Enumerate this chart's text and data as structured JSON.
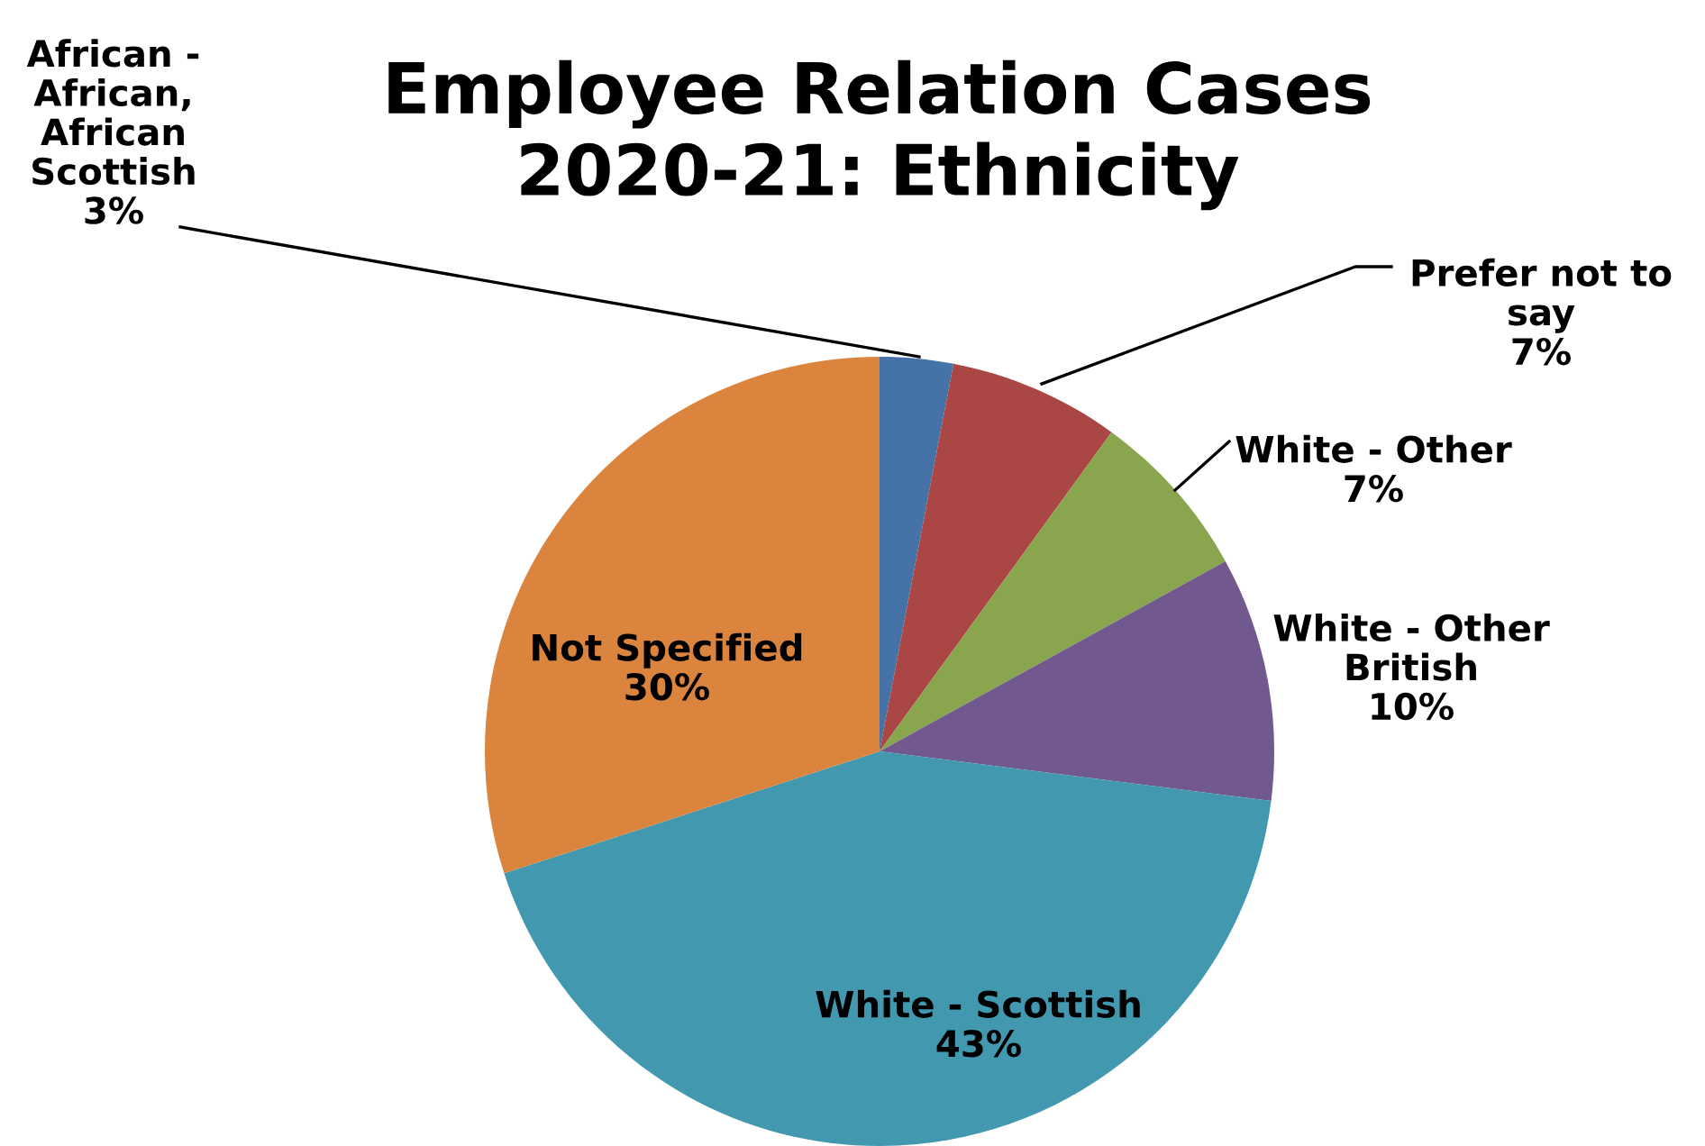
{
  "chart_data": {
    "type": "pie",
    "title": "Employee Relation Cases\n2020-21: Ethnicity",
    "categories": [
      "African -\nAfrican,\nAfrican\nScottish",
      "Prefer not to\nsay",
      "White - Other",
      "White - Other\nBritish",
      "White - Scottish",
      "Not Specified"
    ],
    "values": [
      3,
      7,
      7,
      10,
      43,
      30
    ],
    "value_labels": [
      "3%",
      "7%",
      "7%",
      "10%",
      "43%",
      "30%"
    ],
    "colors": [
      "#4572a7",
      "#aa4643",
      "#89a54e",
      "#71588f",
      "#4198af",
      "#db843d"
    ],
    "legend": false
  }
}
